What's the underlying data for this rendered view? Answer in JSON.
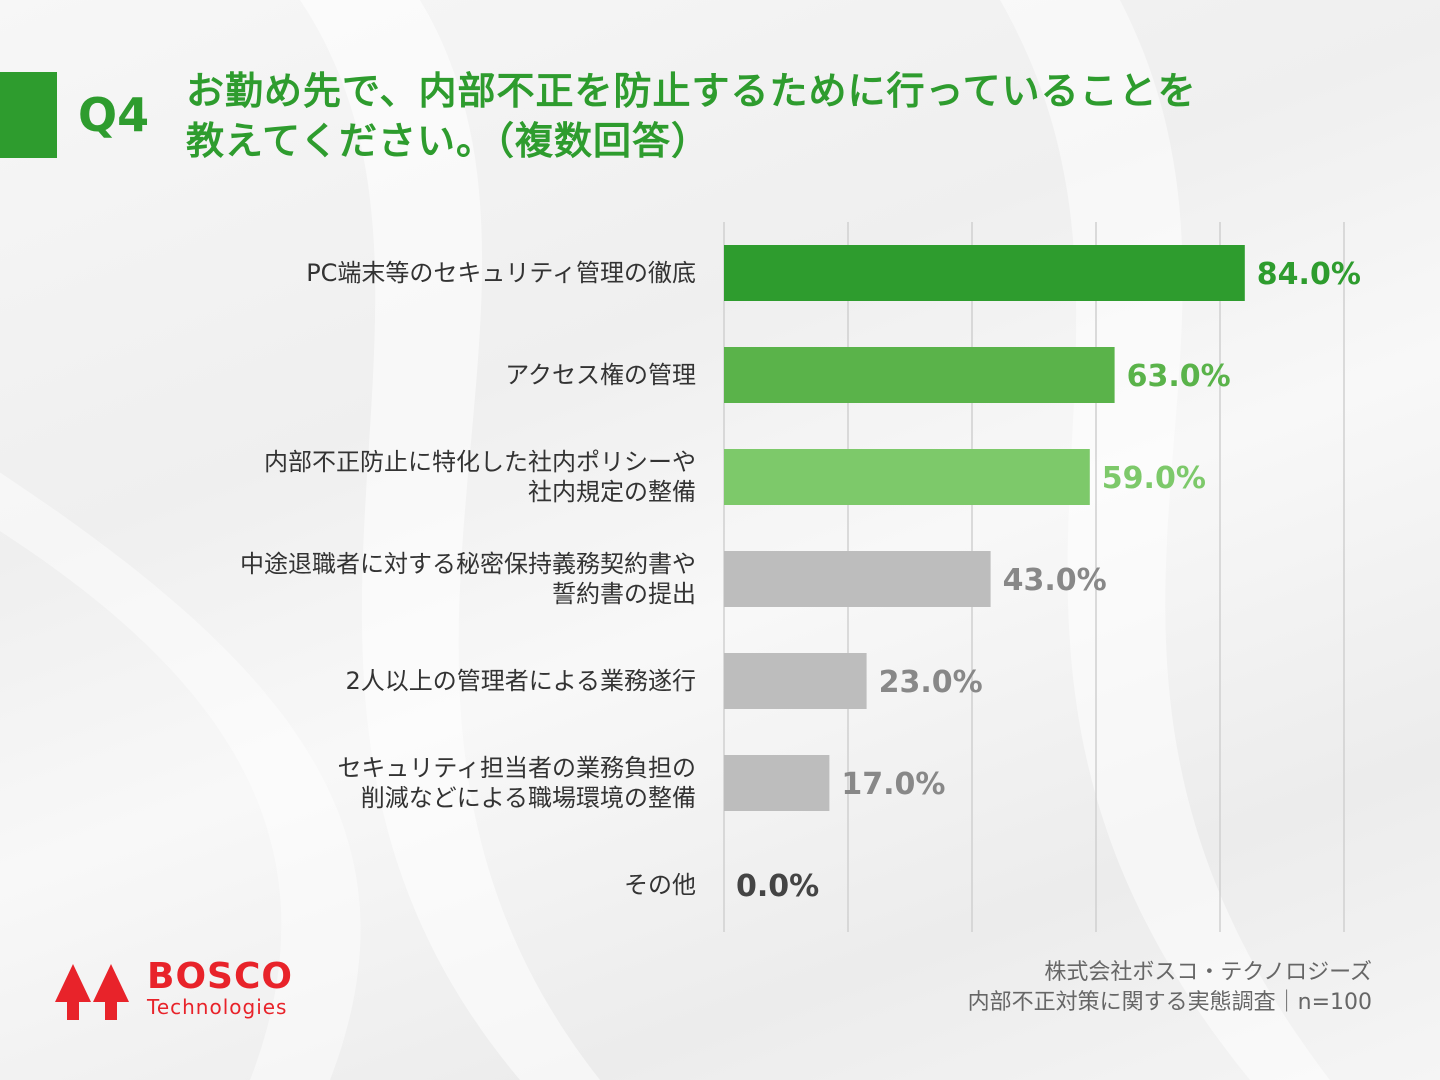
{
  "header": {
    "q_number": "Q4",
    "title_line1": "お勤め先で、内部不正を防止するために行っていることを",
    "title_line2": "教えてください。（複数回答）"
  },
  "colors": {
    "brand_green": "#2e9c2e",
    "bar_colors": [
      "#2e9c2e",
      "#5ab34a",
      "#7dc96a",
      "#bdbdbd",
      "#bdbdbd",
      "#bdbdbd",
      "#bdbdbd"
    ],
    "value_colors": [
      "#2e9c2e",
      "#5ab34a",
      "#7dc96a",
      "#888888",
      "#888888",
      "#888888",
      "#444444"
    ],
    "logo_red": "#e8232a"
  },
  "chart_data": {
    "type": "bar",
    "orientation": "horizontal",
    "categories": [
      [
        "PC端末等のセキュリティ管理の徹底"
      ],
      [
        "アクセス権の管理"
      ],
      [
        "内部不正防止に特化した社内ポリシーや",
        "社内規定の整備"
      ],
      [
        "中途退職者に対する秘密保持義務契約書や",
        "誓約書の提出"
      ],
      [
        "2人以上の管理者による業務遂行"
      ],
      [
        "セキュリティ担当者の業務負担の",
        "削減などによる職場環境の整備"
      ],
      [
        "その他"
      ]
    ],
    "values": [
      84.0,
      63.0,
      59.0,
      43.0,
      23.0,
      17.0,
      0.0
    ],
    "value_labels": [
      "84.0%",
      "63.0%",
      "59.0%",
      "43.0%",
      "23.0%",
      "17.0%",
      "0.0%"
    ],
    "xlim": [
      0,
      100
    ],
    "grid": true
  },
  "logo": {
    "word": "BOSCO",
    "sub": "Technologies"
  },
  "footer": {
    "line1": "株式会社ボスコ・テクノロジーズ",
    "line2": "内部不正対策に関する実態調査｜n=100"
  }
}
